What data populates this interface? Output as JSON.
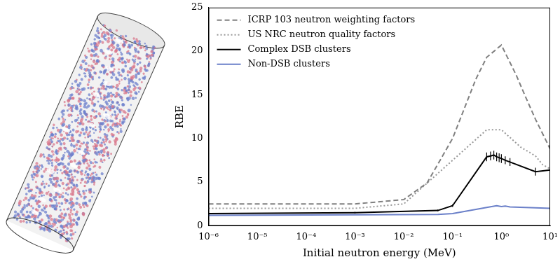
{
  "chart_data": {
    "type": "line",
    "x_label": "Initial neutron energy (MeV)",
    "y_label": "RBE",
    "log": "x",
    "grid": false,
    "legend": "upper left",
    "xlim": [
      1e-06,
      10
    ],
    "xticks": [
      {
        "value": 1e-06,
        "label": "10⁻⁶"
      },
      {
        "value": 1e-05,
        "label": "10⁻⁵"
      },
      {
        "value": 0.0001,
        "label": "10⁻⁴"
      },
      {
        "value": 0.001,
        "label": "10⁻³"
      },
      {
        "value": 0.01,
        "label": "10⁻²"
      },
      {
        "value": 0.1,
        "label": "10⁻¹"
      },
      {
        "value": 1,
        "label": "10⁰"
      },
      {
        "value": 10,
        "label": "10¹"
      }
    ],
    "ylim": [
      0,
      25
    ],
    "yticks": [
      0,
      5,
      10,
      15,
      20,
      25
    ],
    "series": [
      {
        "name": "ICRP 103 neutron weighting factors",
        "color": "#808080",
        "line_style": "dashed",
        "x": [
          1e-06,
          1e-05,
          0.0001,
          0.001,
          0.01,
          0.03,
          0.1,
          0.3,
          0.5,
          1,
          2,
          3,
          5,
          10
        ],
        "values": [
          2.5,
          2.5,
          2.5,
          2.5,
          3.0,
          4.9,
          10.0,
          16.8,
          19.3,
          20.7,
          17.3,
          15.0,
          12.2,
          8.8
        ]
      },
      {
        "name": "US NRC neutron quality factors",
        "color": "#999999",
        "line_style": "dotted",
        "x": [
          1e-06,
          1e-05,
          0.0001,
          0.001,
          0.01,
          0.1,
          0.5,
          1,
          2.5,
          5,
          7,
          10
        ],
        "values": [
          2,
          2,
          2,
          2,
          2.5,
          7.5,
          11,
          11,
          9,
          8,
          7,
          6.5
        ]
      },
      {
        "name": "Complex DSB clusters",
        "color": "#000000",
        "line_style": "solid",
        "x": [
          1e-06,
          0.001,
          0.05,
          0.1,
          0.5,
          0.6,
          0.7,
          0.8,
          0.9,
          1,
          1.2,
          1.5,
          5,
          10
        ],
        "values": [
          1.4,
          1.5,
          1.75,
          2.3,
          7.9,
          8.0,
          8.1,
          7.9,
          7.8,
          7.7,
          7.5,
          7.3,
          6.2,
          6.4
        ],
        "errors": [
          0.1,
          0.1,
          0.1,
          0.15,
          0.5,
          0.5,
          0.5,
          0.5,
          0.5,
          0.5,
          0.45,
          0.45,
          0.45,
          0.5
        ]
      },
      {
        "name": "Non-DSB clusters",
        "color": "#6b80c9",
        "line_style": "solid",
        "x": [
          1e-06,
          0.001,
          0.05,
          0.1,
          0.5,
          0.8,
          1,
          1.2,
          1.5,
          5,
          10
        ],
        "values": [
          1.2,
          1.25,
          1.3,
          1.4,
          2.1,
          2.3,
          2.2,
          2.25,
          2.15,
          2.05,
          2.0
        ]
      }
    ]
  }
}
